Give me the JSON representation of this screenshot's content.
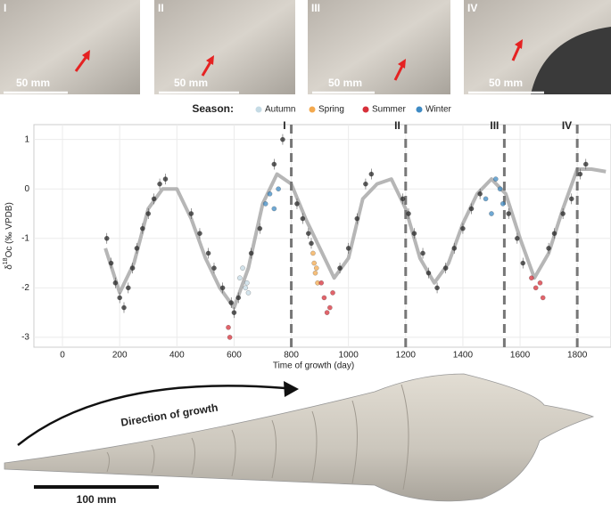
{
  "photos": [
    {
      "label": "I",
      "scale": "50 mm"
    },
    {
      "label": "II",
      "scale": "50 mm"
    },
    {
      "label": "III",
      "scale": "50 mm"
    },
    {
      "label": "IV",
      "scale": "50 mm"
    }
  ],
  "chart_data": {
    "type": "scatter",
    "legend_title": "Season:",
    "x_label": "Time of growth (day)",
    "y_label": {
      "delta": "δ",
      "sup": "18",
      "rest": "Oc (‰ VPDB)"
    },
    "xlim": [
      -100,
      1918
    ],
    "xticks": [
      0,
      200,
      400,
      600,
      800,
      1000,
      1200,
      1400,
      1600,
      1800
    ],
    "ylim": [
      -3.2,
      1.3
    ],
    "yticks": [
      -3,
      -2,
      -1,
      0,
      1
    ],
    "grid": true,
    "markers": [
      {
        "x": 800,
        "label": "I"
      },
      {
        "x": 1200,
        "label": "II"
      },
      {
        "x": 1545,
        "label": "III"
      },
      {
        "x": 1800,
        "label": "IV"
      }
    ],
    "trend": {
      "color": "#a9a9a9",
      "x": [
        150,
        200,
        250,
        300,
        350,
        400,
        450,
        500,
        550,
        600,
        650,
        700,
        750,
        800,
        850,
        900,
        950,
        1000,
        1050,
        1100,
        1150,
        1200,
        1250,
        1300,
        1350,
        1400,
        1450,
        1500,
        1550,
        1600,
        1650,
        1700,
        1750,
        1800,
        1850,
        1900
      ],
      "values": [
        -1.2,
        -2.1,
        -1.5,
        -0.4,
        0,
        0,
        -0.6,
        -1.4,
        -2.0,
        -2.4,
        -1.6,
        -0.3,
        0.3,
        0.1,
        -0.6,
        -1.2,
        -1.8,
        -1.4,
        -0.2,
        0.1,
        0.2,
        -0.4,
        -1.4,
        -1.9,
        -1.5,
        -0.7,
        -0.1,
        0.2,
        -0.1,
        -1.0,
        -1.8,
        -1.3,
        -0.4,
        0.4,
        0.4,
        0.35
      ]
    },
    "points": {
      "color": "#333333",
      "x": [
        155,
        170,
        185,
        200,
        215,
        230,
        245,
        260,
        280,
        300,
        320,
        340,
        360,
        450,
        480,
        510,
        530,
        560,
        590,
        600,
        615,
        660,
        690,
        740,
        770,
        820,
        840,
        860,
        870,
        970,
        1000,
        1030,
        1060,
        1080,
        1190,
        1210,
        1230,
        1260,
        1280,
        1310,
        1340,
        1370,
        1400,
        1430,
        1460,
        1560,
        1590,
        1610,
        1700,
        1720,
        1750,
        1780,
        1810,
        1830
      ],
      "values": [
        -1.0,
        -1.5,
        -1.9,
        -2.2,
        -2.4,
        -2.0,
        -1.6,
        -1.2,
        -0.8,
        -0.5,
        -0.2,
        0.1,
        0.2,
        -0.5,
        -0.9,
        -1.3,
        -1.6,
        -2.0,
        -2.3,
        -2.5,
        -2.2,
        -1.3,
        -0.8,
        0.5,
        1.0,
        -0.3,
        -0.6,
        -0.9,
        -1.1,
        -1.6,
        -1.2,
        -0.6,
        0.1,
        0.3,
        -0.2,
        -0.5,
        -0.9,
        -1.3,
        -1.7,
        -2.0,
        -1.6,
        -1.2,
        -0.8,
        -0.4,
        -0.1,
        -0.5,
        -1.0,
        -1.5,
        -1.2,
        -0.9,
        -0.5,
        -0.2,
        0.3,
        0.5
      ]
    },
    "series": [
      {
        "name": "Autumn",
        "color": "#c5dbe5",
        "x": [
          620,
          630,
          640,
          645,
          650
        ],
        "values": [
          -1.8,
          -1.6,
          -2.0,
          -1.9,
          -2.1
        ]
      },
      {
        "name": "Spring",
        "color": "#f3a94f",
        "x": [
          876,
          880,
          884,
          888,
          892
        ],
        "values": [
          -1.3,
          -1.5,
          -1.7,
          -1.6,
          -1.9
        ]
      },
      {
        "name": "Summer",
        "color": "#d7303a",
        "x": [
          580,
          585,
          905,
          915,
          925,
          935,
          945,
          1640,
          1655,
          1670,
          1680
        ],
        "values": [
          -2.8,
          -3.0,
          -1.9,
          -2.2,
          -2.5,
          -2.4,
          -2.1,
          -1.8,
          -2.0,
          -1.9,
          -2.2
        ]
      },
      {
        "name": "Winter",
        "color": "#3f8bc4",
        "x": [
          710,
          725,
          740,
          755,
          1480,
          1500,
          1515,
          1530,
          1540
        ],
        "values": [
          -0.3,
          -0.1,
          -0.4,
          0.0,
          -0.2,
          -0.5,
          0.2,
          0.0,
          -0.3
        ]
      }
    ]
  },
  "shell": {
    "direction": "Direction of growth",
    "scale": "100 mm"
  }
}
